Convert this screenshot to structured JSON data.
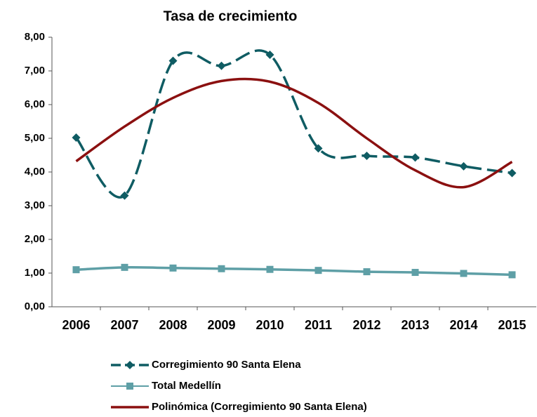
{
  "chart_data": {
    "type": "line",
    "title": "Tasa de crecimiento",
    "categories": [
      "2006",
      "2007",
      "2008",
      "2009",
      "2010",
      "2011",
      "2012",
      "2013",
      "2014",
      "2015"
    ],
    "series": [
      {
        "name": "Corregimiento 90 Santa Elena",
        "color": "#0f5c63",
        "dash": true,
        "marker": "diamond",
        "values": [
          5.02,
          3.3,
          7.3,
          7.15,
          7.48,
          4.7,
          4.48,
          4.43,
          4.17,
          3.97
        ]
      },
      {
        "name": "Total Medellín",
        "color": "#5e9fa6",
        "dash": false,
        "marker": "square",
        "values": [
          1.1,
          1.17,
          1.15,
          1.13,
          1.11,
          1.08,
          1.04,
          1.02,
          0.99,
          0.95
        ]
      },
      {
        "name": "Polinómica (Corregimiento 90 Santa Elena)",
        "color": "#8b1010",
        "dash": false,
        "marker": "none",
        "values": [
          4.32,
          5.35,
          6.2,
          6.7,
          6.68,
          6.05,
          5.0,
          4.05,
          3.55,
          4.3
        ]
      }
    ],
    "ylim": [
      0,
      8
    ],
    "yticks": [
      {
        "value": 0,
        "label": "0,00"
      },
      {
        "value": 1,
        "label": "1,00"
      },
      {
        "value": 2,
        "label": "2,00"
      },
      {
        "value": 3,
        "label": "3,00"
      },
      {
        "value": 4,
        "label": "4,00"
      },
      {
        "value": 5,
        "label": "5,00"
      },
      {
        "value": 6,
        "label": "6,00"
      },
      {
        "value": 7,
        "label": "7,00"
      },
      {
        "value": 8,
        "label": "8,00"
      }
    ],
    "smooth": true,
    "grid": false
  }
}
